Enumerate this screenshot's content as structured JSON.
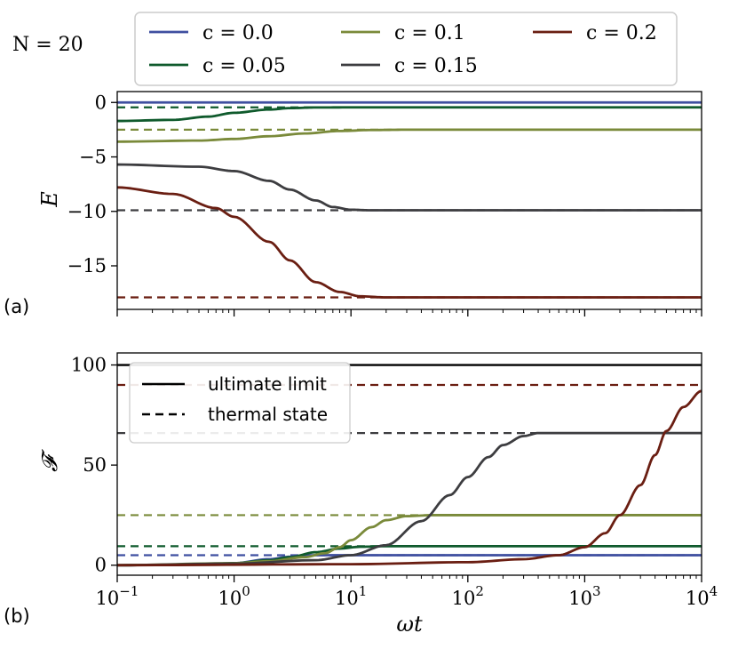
{
  "figure": {
    "annotation": "N = 20",
    "colors": {
      "c0": "#3f4fa0",
      "c005": "#0f5a2c",
      "c01": "#7a8a3a",
      "c015": "#3d3d40",
      "c02": "#6a1e12",
      "limit": "#000000"
    }
  },
  "chart_data": [
    {
      "type": "line",
      "panel": "(a)",
      "xscale": "log",
      "xlim": [
        0.1,
        10000
      ],
      "ylim": [
        -19,
        1
      ],
      "ylabel": "E",
      "xlabel": "",
      "yticks": [
        0,
        -5,
        -10,
        -15
      ],
      "ytick_labels": [
        "0",
        "−5",
        "−10",
        "−15"
      ],
      "legend": {
        "placement": "top (above panel a)",
        "entries": [
          "c = 0.0",
          "c = 0.05",
          "c = 0.1",
          "c = 0.15",
          "c = 0.2"
        ]
      },
      "series": [
        {
          "name": "c = 0.0",
          "color_key": "c0",
          "x": [
            0.1,
            1,
            10,
            100,
            1000,
            10000
          ],
          "values": [
            0,
            0,
            0,
            0,
            0,
            0
          ],
          "thermal": 0.0
        },
        {
          "name": "c = 0.05",
          "color_key": "c005",
          "x": [
            0.1,
            0.3,
            0.6,
            1,
            2,
            3,
            5,
            10,
            100,
            10000
          ],
          "values": [
            -1.7,
            -1.6,
            -1.3,
            -0.95,
            -0.65,
            -0.52,
            -0.46,
            -0.45,
            -0.45,
            -0.45
          ],
          "thermal": -0.45
        },
        {
          "name": "c = 0.1",
          "color_key": "c01",
          "x": [
            0.1,
            0.5,
            1,
            2,
            4,
            8,
            15,
            30,
            100,
            10000
          ],
          "values": [
            -3.6,
            -3.5,
            -3.35,
            -3.1,
            -2.85,
            -2.62,
            -2.53,
            -2.5,
            -2.5,
            -2.5
          ],
          "thermal": -2.5
        },
        {
          "name": "c = 0.15",
          "color_key": "c015",
          "x": [
            0.1,
            0.5,
            1,
            2,
            3,
            5,
            7,
            10,
            15,
            100,
            10000
          ],
          "values": [
            -5.7,
            -5.9,
            -6.3,
            -7.2,
            -8.0,
            -9.0,
            -9.6,
            -9.85,
            -9.9,
            -9.9,
            -9.9
          ],
          "thermal": -9.9
        },
        {
          "name": "c = 0.2",
          "color_key": "c02",
          "x": [
            0.1,
            0.3,
            0.7,
            1,
            2,
            3,
            5,
            8,
            12,
            20,
            50,
            10000
          ],
          "values": [
            -7.8,
            -8.4,
            -9.7,
            -10.5,
            -12.8,
            -14.5,
            -16.5,
            -17.4,
            -17.8,
            -17.9,
            -17.9,
            -17.9
          ],
          "thermal": -17.9
        }
      ]
    },
    {
      "type": "line",
      "panel": "(b)",
      "xscale": "log",
      "xlim": [
        0.1,
        10000
      ],
      "ylim": [
        -5,
        106
      ],
      "ylabel": "𝓕",
      "xlabel": "ωt",
      "xticks": [
        0.1,
        1,
        10,
        100,
        1000,
        10000
      ],
      "xtick_labels": [
        {
          "base": "10",
          "exp": "−1"
        },
        {
          "base": "10",
          "exp": "0"
        },
        {
          "base": "10",
          "exp": "1"
        },
        {
          "base": "10",
          "exp": "2"
        },
        {
          "base": "10",
          "exp": "3"
        },
        {
          "base": "10",
          "exp": "4"
        }
      ],
      "yticks": [
        0,
        50,
        100
      ],
      "ytick_labels": [
        "0",
        "50",
        "100"
      ],
      "legend": {
        "placement": "upper-left",
        "entries": [
          "ultimate limit",
          "thermal state"
        ]
      },
      "ultimate_limit": 100,
      "series": [
        {
          "name": "c = 0.0",
          "color_key": "c0",
          "x": [
            0.1,
            0.5,
            1,
            2,
            3,
            5,
            10,
            10000
          ],
          "values": [
            0,
            0.3,
            1,
            3,
            4.2,
            5,
            5,
            5
          ],
          "thermal": 5
        },
        {
          "name": "c = 0.05",
          "color_key": "c005",
          "x": [
            0.1,
            0.5,
            1,
            2,
            3,
            5,
            8,
            12,
            20,
            10000
          ],
          "values": [
            0,
            0.3,
            1,
            2.5,
            4,
            6.5,
            8.3,
            9.2,
            9.5,
            9.5
          ],
          "thermal": 9.5
        },
        {
          "name": "c = 0.1",
          "color_key": "c01",
          "x": [
            0.1,
            1,
            2,
            4,
            6,
            8,
            10,
            15,
            20,
            30,
            50,
            100,
            10000
          ],
          "values": [
            0,
            1,
            2,
            4,
            6,
            9,
            12.5,
            19,
            22.5,
            24.5,
            25,
            25,
            25
          ],
          "thermal": 25
        },
        {
          "name": "c = 0.15",
          "color_key": "c015",
          "x": [
            0.1,
            1,
            5,
            10,
            20,
            40,
            70,
            100,
            150,
            200,
            300,
            400,
            1000,
            10000
          ],
          "values": [
            0,
            0.8,
            2.5,
            5,
            10,
            22,
            35,
            44,
            54,
            60,
            64.5,
            66,
            66,
            66
          ],
          "thermal": 66
        },
        {
          "name": "c = 0.2",
          "color_key": "c02",
          "x": [
            0.1,
            10,
            100,
            300,
            600,
            1000,
            1500,
            2000,
            3000,
            4000,
            5000,
            7000,
            10000
          ],
          "values": [
            0,
            0.5,
            1.5,
            3,
            5,
            9,
            16,
            25,
            40,
            55,
            67,
            79,
            87
          ],
          "thermal": 90
        }
      ]
    }
  ]
}
